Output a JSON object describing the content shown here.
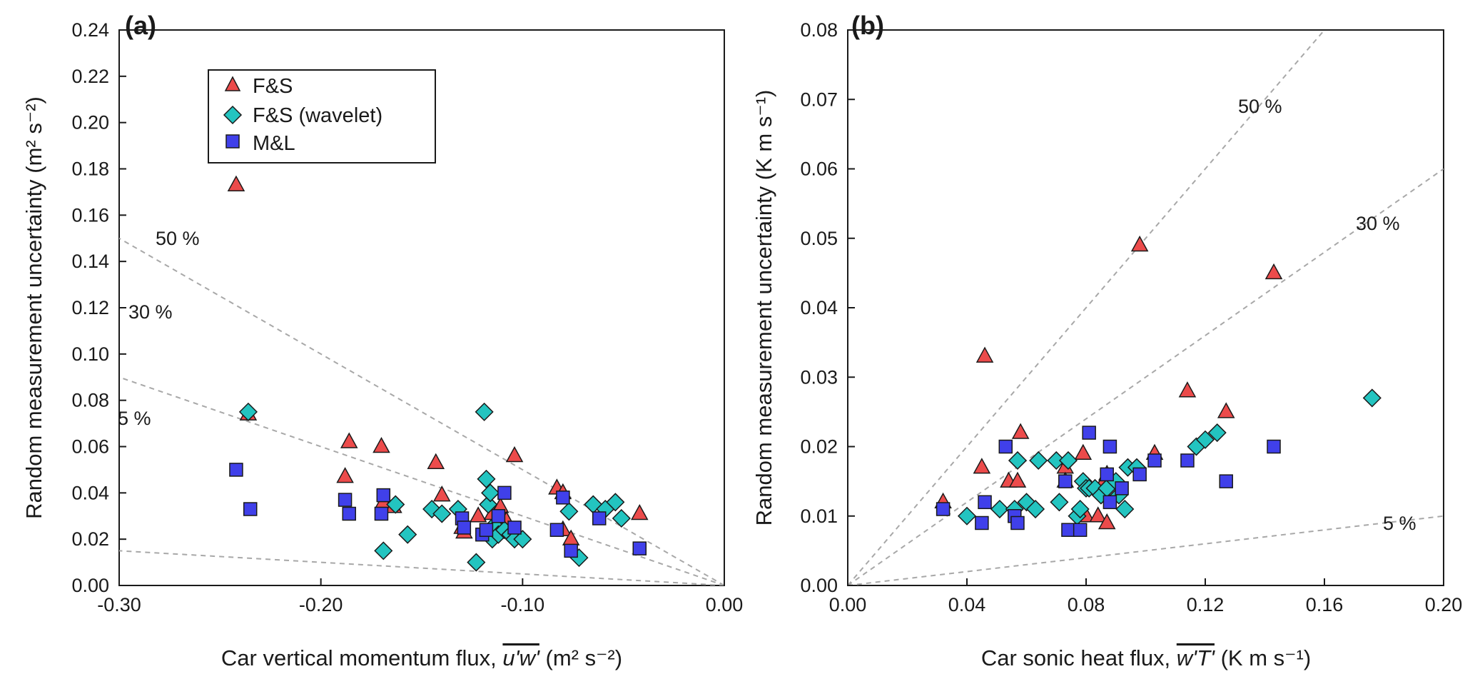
{
  "colors": {
    "fs": "#ec4b4b",
    "fs_wavelet": "#23c4c0",
    "ml": "#4040ea",
    "edge": "#1a1a1a",
    "reference_line": "#a8a8a8"
  },
  "legend": {
    "entries": [
      {
        "key": "fs",
        "label": "F&S",
        "marker": "triangle"
      },
      {
        "key": "fs_wavelet",
        "label": "F&S (wavelet)",
        "marker": "diamond"
      },
      {
        "key": "ml",
        "label": "M&L",
        "marker": "square"
      }
    ]
  },
  "chart_data": [
    {
      "type": "scatter",
      "panel_label": "(a)",
      "xlabel_prefix": "Car vertical momentum flux, ",
      "xlabel_symbol": "u'w'",
      "xlabel_unit": "m² s⁻²",
      "ylabel": "Random measurement uncertainty (m² s⁻²)",
      "xlim": [
        -0.3,
        0.0
      ],
      "ylim": [
        0.0,
        0.24
      ],
      "x_ticks": [
        "-0.30",
        "-0.20",
        "-0.10",
        "0.00"
      ],
      "y_ticks": [
        "0.00",
        "0.02",
        "0.04",
        "0.06",
        "0.08",
        "0.10",
        "0.12",
        "0.14",
        "0.16",
        "0.18",
        "0.20",
        "0.22",
        "0.24"
      ],
      "grid": false,
      "legend": "top-left",
      "reference_lines": [
        {
          "label": "50 %",
          "fraction": 0.5
        },
        {
          "label": "30 %",
          "fraction": 0.3
        },
        {
          "label": "5 %",
          "fraction": 0.05
        }
      ],
      "series": [
        {
          "name": "F&S",
          "points": [
            [
              -0.242,
              0.173
            ],
            [
              -0.236,
              0.074
            ],
            [
              -0.188,
              0.047
            ],
            [
              -0.186,
              0.062
            ],
            [
              -0.17,
              0.06
            ],
            [
              -0.169,
              0.036
            ],
            [
              -0.164,
              0.034
            ],
            [
              -0.143,
              0.053
            ],
            [
              -0.14,
              0.039
            ],
            [
              -0.13,
              0.025
            ],
            [
              -0.129,
              0.023
            ],
            [
              -0.122,
              0.03
            ],
            [
              -0.115,
              0.031
            ],
            [
              -0.111,
              0.034
            ],
            [
              -0.108,
              0.028
            ],
            [
              -0.104,
              0.056
            ],
            [
              -0.083,
              0.042
            ],
            [
              -0.08,
              0.04
            ],
            [
              -0.08,
              0.024
            ],
            [
              -0.076,
              0.02
            ],
            [
              -0.042,
              0.031
            ]
          ]
        },
        {
          "name": "F&S (wavelet)",
          "points": [
            [
              -0.236,
              0.075
            ],
            [
              -0.169,
              0.015
            ],
            [
              -0.163,
              0.035
            ],
            [
              -0.157,
              0.022
            ],
            [
              -0.145,
              0.033
            ],
            [
              -0.14,
              0.031
            ],
            [
              -0.132,
              0.033
            ],
            [
              -0.123,
              0.01
            ],
            [
              -0.119,
              0.075
            ],
            [
              -0.118,
              0.046
            ],
            [
              -0.117,
              0.035
            ],
            [
              -0.116,
              0.04
            ],
            [
              -0.115,
              0.02
            ],
            [
              -0.114,
              0.026
            ],
            [
              -0.112,
              0.022
            ],
            [
              -0.109,
              0.024
            ],
            [
              -0.106,
              0.022
            ],
            [
              -0.104,
              0.02
            ],
            [
              -0.1,
              0.02
            ],
            [
              -0.077,
              0.032
            ],
            [
              -0.072,
              0.012
            ],
            [
              -0.065,
              0.035
            ],
            [
              -0.059,
              0.033
            ],
            [
              -0.054,
              0.036
            ],
            [
              -0.051,
              0.029
            ]
          ]
        },
        {
          "name": "M&L",
          "points": [
            [
              -0.242,
              0.05
            ],
            [
              -0.235,
              0.033
            ],
            [
              -0.188,
              0.037
            ],
            [
              -0.186,
              0.031
            ],
            [
              -0.17,
              0.031
            ],
            [
              -0.169,
              0.039
            ],
            [
              -0.13,
              0.029
            ],
            [
              -0.129,
              0.025
            ],
            [
              -0.12,
              0.022
            ],
            [
              -0.118,
              0.024
            ],
            [
              -0.112,
              0.03
            ],
            [
              -0.109,
              0.04
            ],
            [
              -0.104,
              0.025
            ],
            [
              -0.083,
              0.024
            ],
            [
              -0.08,
              0.038
            ],
            [
              -0.076,
              0.015
            ],
            [
              -0.062,
              0.029
            ],
            [
              -0.042,
              0.016
            ]
          ]
        }
      ]
    },
    {
      "type": "scatter",
      "panel_label": "(b)",
      "xlabel_prefix": "Car sonic heat flux, ",
      "xlabel_symbol": "w'T'",
      "xlabel_unit": "K m s⁻¹",
      "ylabel": "Random measurement uncertainty (K m s⁻¹)",
      "xlim": [
        0.0,
        0.2
      ],
      "ylim": [
        0.0,
        0.08
      ],
      "x_ticks": [
        "0.00",
        "0.04",
        "0.08",
        "0.12",
        "0.16",
        "0.20"
      ],
      "y_ticks": [
        "0.00",
        "0.01",
        "0.02",
        "0.03",
        "0.04",
        "0.05",
        "0.06",
        "0.07",
        "0.08"
      ],
      "grid": false,
      "legend": "none",
      "reference_lines": [
        {
          "label": "50 %",
          "fraction": 0.5
        },
        {
          "label": "30 %",
          "fraction": 0.3
        },
        {
          "label": "5 %",
          "fraction": 0.05
        }
      ],
      "series": [
        {
          "name": "F&S",
          "points": [
            [
              0.032,
              0.012
            ],
            [
              0.045,
              0.017
            ],
            [
              0.046,
              0.033
            ],
            [
              0.054,
              0.015
            ],
            [
              0.057,
              0.015
            ],
            [
              0.058,
              0.022
            ],
            [
              0.073,
              0.017
            ],
            [
              0.073,
              0.015
            ],
            [
              0.079,
              0.019
            ],
            [
              0.08,
              0.01
            ],
            [
              0.084,
              0.01
            ],
            [
              0.086,
              0.015
            ],
            [
              0.087,
              0.016
            ],
            [
              0.087,
              0.009
            ],
            [
              0.098,
              0.049
            ],
            [
              0.103,
              0.019
            ],
            [
              0.114,
              0.028
            ],
            [
              0.127,
              0.025
            ],
            [
              0.143,
              0.045
            ]
          ]
        },
        {
          "name": "F&S (wavelet)",
          "points": [
            [
              0.04,
              0.01
            ],
            [
              0.051,
              0.011
            ],
            [
              0.056,
              0.011
            ],
            [
              0.057,
              0.018
            ],
            [
              0.06,
              0.012
            ],
            [
              0.063,
              0.011
            ],
            [
              0.064,
              0.018
            ],
            [
              0.07,
              0.018
            ],
            [
              0.071,
              0.012
            ],
            [
              0.074,
              0.018
            ],
            [
              0.077,
              0.01
            ],
            [
              0.078,
              0.011
            ],
            [
              0.079,
              0.015
            ],
            [
              0.08,
              0.014
            ],
            [
              0.081,
              0.014
            ],
            [
              0.083,
              0.014
            ],
            [
              0.085,
              0.013
            ],
            [
              0.087,
              0.014
            ],
            [
              0.09,
              0.015
            ],
            [
              0.091,
              0.013
            ],
            [
              0.093,
              0.011
            ],
            [
              0.094,
              0.017
            ],
            [
              0.097,
              0.017
            ],
            [
              0.117,
              0.02
            ],
            [
              0.12,
              0.021
            ],
            [
              0.124,
              0.022
            ],
            [
              0.176,
              0.027
            ]
          ]
        },
        {
          "name": "M&L",
          "points": [
            [
              0.032,
              0.011
            ],
            [
              0.045,
              0.009
            ],
            [
              0.046,
              0.012
            ],
            [
              0.053,
              0.02
            ],
            [
              0.056,
              0.01
            ],
            [
              0.057,
              0.009
            ],
            [
              0.073,
              0.015
            ],
            [
              0.074,
              0.008
            ],
            [
              0.078,
              0.008
            ],
            [
              0.081,
              0.022
            ],
            [
              0.087,
              0.016
            ],
            [
              0.088,
              0.02
            ],
            [
              0.088,
              0.012
            ],
            [
              0.092,
              0.014
            ],
            [
              0.098,
              0.016
            ],
            [
              0.103,
              0.018
            ],
            [
              0.114,
              0.018
            ],
            [
              0.127,
              0.015
            ],
            [
              0.143,
              0.02
            ]
          ]
        }
      ]
    }
  ]
}
